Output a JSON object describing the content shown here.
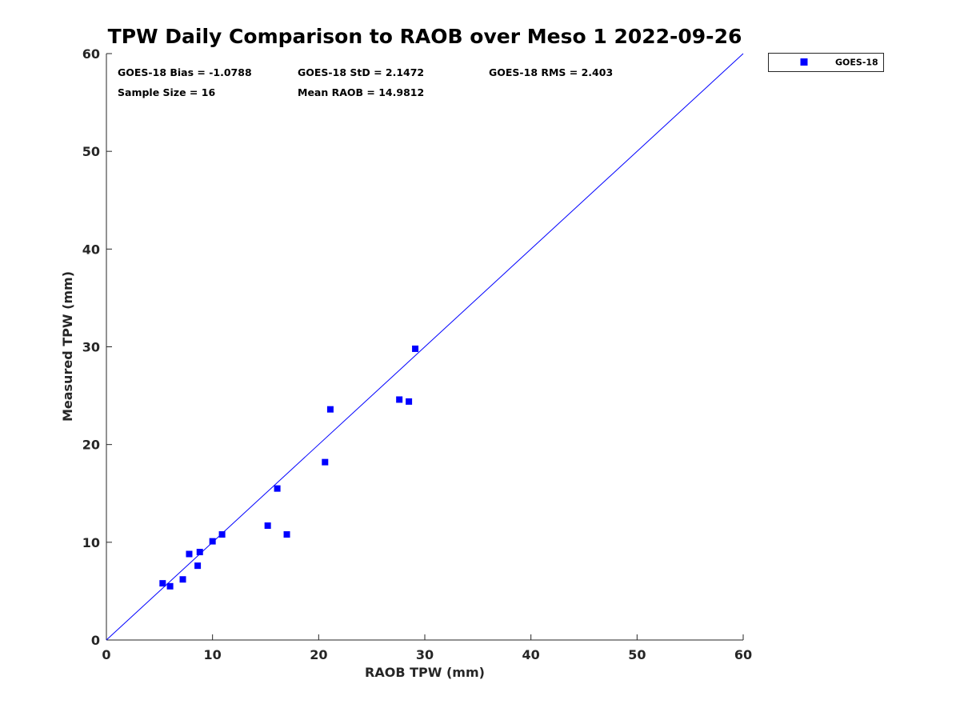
{
  "chart_data": {
    "type": "scatter",
    "title": "TPW Daily Comparison to RAOB over Meso 1 2022-09-26",
    "xlabel": "RAOB TPW (mm)",
    "ylabel": "Measured TPW (mm)",
    "xlim": [
      0,
      60
    ],
    "ylim": [
      0,
      60
    ],
    "xticks": [
      "0",
      "10",
      "20",
      "30",
      "40",
      "50",
      "60"
    ],
    "yticks": [
      "0",
      "10",
      "20",
      "30",
      "40",
      "50",
      "60"
    ],
    "grid": false,
    "legend_position": "top-right outside plot",
    "reference_line": {
      "x": [
        0,
        60
      ],
      "y": [
        0,
        60
      ],
      "color": "#0000ff"
    },
    "series": [
      {
        "name": "GOES-18",
        "color": "#0000ff",
        "marker": "square",
        "points": [
          [
            5.3,
            5.8
          ],
          [
            6.0,
            5.5
          ],
          [
            7.2,
            6.2
          ],
          [
            7.8,
            8.8
          ],
          [
            8.6,
            7.6
          ],
          [
            8.8,
            9.0
          ],
          [
            10.0,
            10.1
          ],
          [
            10.9,
            10.8
          ],
          [
            15.2,
            11.7
          ],
          [
            16.1,
            15.5
          ],
          [
            17.0,
            10.8
          ],
          [
            20.6,
            18.2
          ],
          [
            21.1,
            23.6
          ],
          [
            27.6,
            24.6
          ],
          [
            28.5,
            24.4
          ],
          [
            29.1,
            29.8
          ]
        ]
      }
    ],
    "annotations": [
      "GOES-18 Bias = -1.0788",
      "GOES-18 StD = 2.1472",
      "GOES-18 RMS = 2.403",
      "Sample Size = 16",
      "Mean RAOB = 14.9812"
    ]
  }
}
